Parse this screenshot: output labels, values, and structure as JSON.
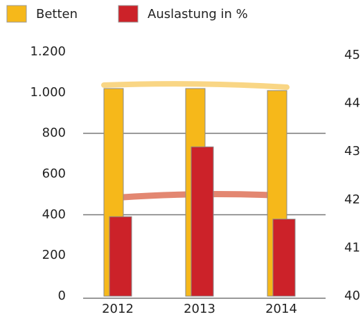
{
  "chart_data": {
    "type": "bar",
    "categories": [
      "2012",
      "2013",
      "2014"
    ],
    "series": [
      {
        "name": "Betten",
        "color": "#f6b81a",
        "values": [
          1020,
          1020,
          1010
        ]
      },
      {
        "name": "Auslastung in %",
        "color": "#cc2229",
        "values": [
          41.65,
          43.1,
          41.6
        ],
        "axis": "y2"
      }
    ],
    "ylim": [
      0,
      1200
    ],
    "yticks": [
      0,
      200,
      400,
      600,
      800,
      {
        "value": 1000,
        "label": "1.000"
      },
      {
        "value": 1200,
        "label": "1.200"
      }
    ],
    "y2lim": [
      40,
      45
    ],
    "y2ticks": [
      40,
      41,
      42,
      43,
      44,
      45
    ],
    "ygrid": [
      400,
      800
    ],
    "legend": "top-left"
  }
}
